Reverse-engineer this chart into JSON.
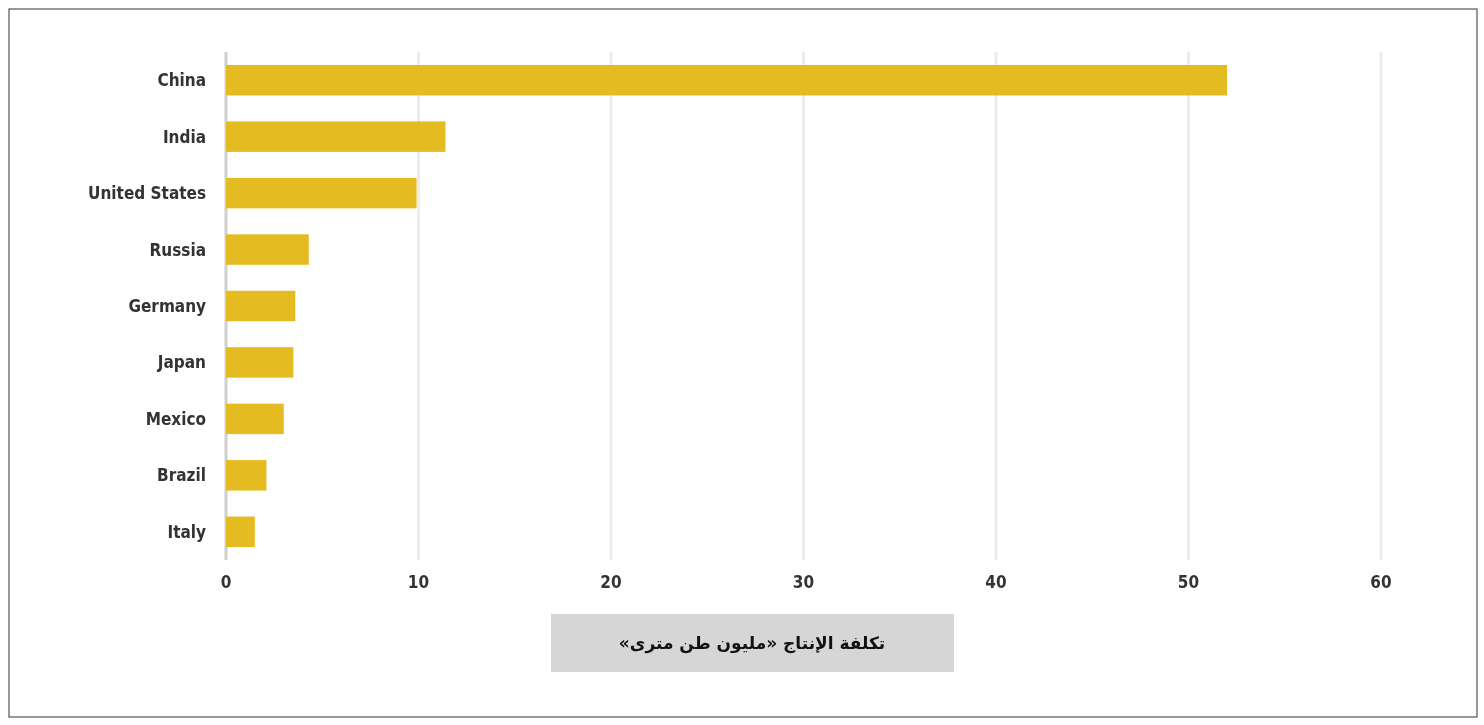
{
  "chart_data": {
    "type": "bar",
    "orientation": "horizontal",
    "categories": [
      "China",
      "India",
      "United States",
      "Russia",
      "Germany",
      "Japan",
      "Mexico",
      "Brazil",
      "Italy"
    ],
    "values": [
      52,
      11.4,
      9.9,
      4.3,
      3.6,
      3.5,
      3.0,
      2.1,
      1.5
    ],
    "color": "#e5bb22",
    "xlim": [
      0,
      60
    ],
    "xticks": [
      0,
      10,
      20,
      30,
      40,
      50,
      60
    ],
    "grid": "x",
    "xlabel": "تكلفة الإنتاج «مليون طن مترى»"
  }
}
